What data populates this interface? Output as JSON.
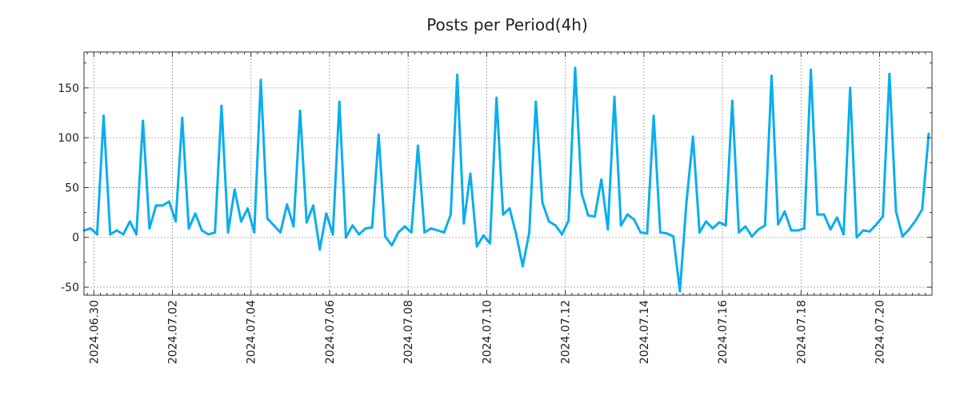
{
  "chart_data": {
    "type": "line",
    "title": "Posts per Period(4h)",
    "xlabel": "",
    "ylabel": "",
    "ylim": [
      -58,
      186
    ],
    "yticks": [
      -50,
      0,
      50,
      100,
      150
    ],
    "ytick_labels": [
      "-50",
      "0",
      "50",
      "100",
      "150"
    ],
    "xlim": [
      0,
      129.5
    ],
    "xticks": [
      1.5,
      13.5,
      25.5,
      37.5,
      49.5,
      61.5,
      73.5,
      85.5,
      97.5,
      109.5,
      121.5
    ],
    "xtick_labels": [
      "2024.06.30",
      "2024.07.02",
      "2024.07.04",
      "2024.07.06",
      "2024.07.08",
      "2024.07.10",
      "2024.07.12",
      "2024.07.14",
      "2024.07.16",
      "2024.07.18",
      "2024.07.20"
    ],
    "minor_xtick_step": 1,
    "grid": true,
    "series": [
      {
        "name": "posts",
        "color": "#0aaeee",
        "values": [
          7,
          9,
          3,
          122,
          3,
          7,
          3,
          16,
          3,
          117,
          9,
          32,
          32,
          36,
          16,
          120,
          9,
          24,
          7,
          3,
          5,
          132,
          5,
          48,
          16,
          29,
          5,
          158,
          19,
          12,
          5,
          33,
          11,
          127,
          15,
          32,
          -12,
          24,
          3,
          136,
          0,
          12,
          3,
          9,
          10,
          103,
          1,
          -8,
          5,
          11,
          5,
          92,
          5,
          9,
          7,
          5,
          23,
          163,
          14,
          64,
          -9,
          2,
          -6,
          140,
          23,
          29,
          3,
          -29,
          5,
          136,
          35,
          16,
          12,
          3,
          17,
          170,
          44,
          22,
          21,
          58,
          8,
          141,
          12,
          23,
          18,
          5,
          4,
          122,
          5,
          4,
          1,
          -54,
          35,
          101,
          5,
          16,
          9,
          15,
          12,
          137,
          5,
          11,
          1,
          8,
          12,
          162,
          13,
          26,
          7,
          7,
          9,
          168,
          23,
          23,
          8,
          20,
          3,
          150,
          0,
          7,
          6,
          13,
          21,
          164,
          26,
          1,
          8,
          17,
          28,
          104
        ]
      }
    ]
  }
}
